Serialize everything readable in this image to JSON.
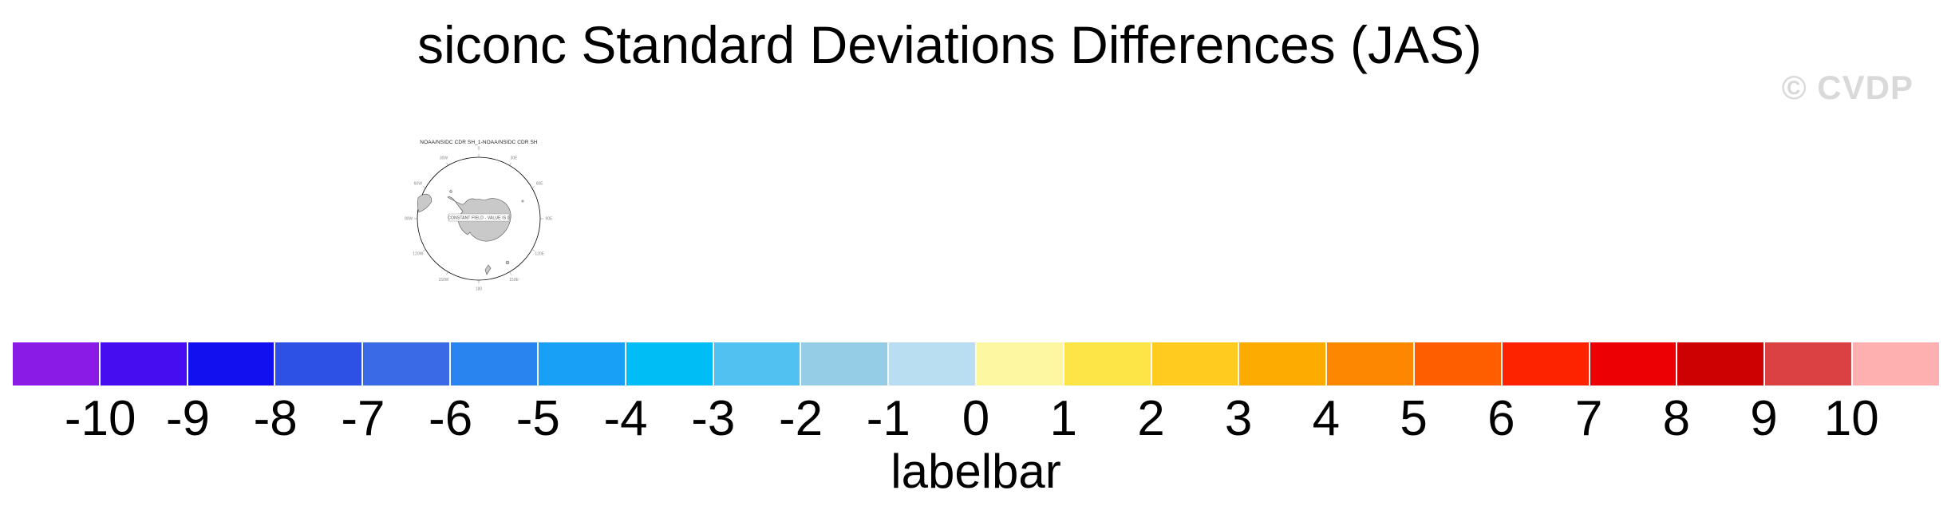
{
  "page": {
    "title": "siconc Standard Deviations Differences (JAS)",
    "watermark": "© CVDP",
    "background": "#ffffff"
  },
  "map": {
    "title": "NOAA/NSIDC CDR SH_1-NOAA/NSIDC CDR SH",
    "center_label": "CONSTANT FIELD - VALUE IS 0",
    "projection": "south polar stereographic",
    "lon_labels": [
      "0",
      "30E",
      "60E",
      "90E",
      "120E",
      "150E",
      "180",
      "150W",
      "120W",
      "90W",
      "60W",
      "30W"
    ],
    "land_color": "#c9c9c9",
    "coast_color": "#555555",
    "circle_color": "#000000",
    "grid_label_color": "#888888"
  },
  "labelbar": {
    "caption": "labelbar",
    "tick_labels": [
      "-10",
      "-9",
      "-8",
      "-7",
      "-6",
      "-5",
      "-4",
      "-3",
      "-2",
      "-1",
      "0",
      "1",
      "2",
      "3",
      "4",
      "5",
      "6",
      "7",
      "8",
      "9",
      "10"
    ],
    "colors": [
      "#8a1ae6",
      "#450def",
      "#1310ef",
      "#2e51e5",
      "#3a6ae5",
      "#2a84ef",
      "#17a0f5",
      "#00bef5",
      "#51c1f1",
      "#95cde7",
      "#b9def1",
      "#fcf7a0",
      "#fde447",
      "#fecb1e",
      "#feab00",
      "#fe8700",
      "#fe5d00",
      "#fe2300",
      "#ed0004",
      "#cd0002",
      "#db4143",
      "#feafaf"
    ]
  },
  "chart_data": {
    "type": "heatmap",
    "title": "siconc Standard Deviations Differences (JAS)",
    "panel_title": "NOAA/NSIDC CDR SH_1-NOAA/NSIDC CDR SH",
    "annotation": "CONSTANT FIELD - VALUE IS 0",
    "field_constant_value": 0,
    "map_region": "Southern Hemisphere / Antarctica",
    "legend_position": "bottom",
    "colorbar": {
      "label": "labelbar",
      "levels": [
        -10,
        -9,
        -8,
        -7,
        -6,
        -5,
        -4,
        -3,
        -2,
        -1,
        0,
        1,
        2,
        3,
        4,
        5,
        6,
        7,
        8,
        9,
        10
      ],
      "colors": [
        "#8a1ae6",
        "#450def",
        "#1310ef",
        "#2e51e5",
        "#3a6ae5",
        "#2a84ef",
        "#17a0f5",
        "#00bef5",
        "#51c1f1",
        "#95cde7",
        "#b9def1",
        "#fcf7a0",
        "#fde447",
        "#fecb1e",
        "#feab00",
        "#fe8700",
        "#fe5d00",
        "#fe2300",
        "#ed0004",
        "#cd0002",
        "#db4143",
        "#feafaf"
      ]
    },
    "notes": "Difference map is a constant field (all zeros); small south-polar stereographic map panel with longitude labels every 30 degrees."
  }
}
